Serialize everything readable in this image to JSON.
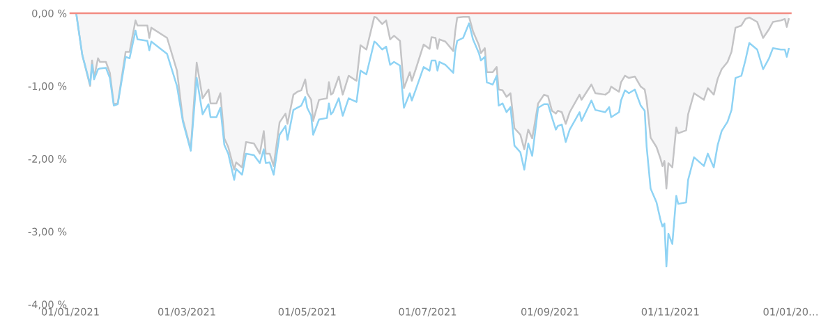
{
  "chart_data": {
    "type": "line",
    "x": [
      "2021-01-04",
      "2021-01-07",
      "2021-01-11",
      "2021-01-12",
      "2021-01-13",
      "2021-01-15",
      "2021-01-16",
      "2021-01-19",
      "2021-01-21",
      "2021-01-23",
      "2021-01-25",
      "2021-01-29",
      "2021-01-31",
      "2021-02-03",
      "2021-02-04",
      "2021-02-09",
      "2021-02-10",
      "2021-02-11",
      "2021-02-19",
      "2021-02-24",
      "2021-02-27",
      "2021-03-03",
      "2021-03-06",
      "2021-03-09",
      "2021-03-12",
      "2021-03-13",
      "2021-03-16",
      "2021-03-18",
      "2021-03-20",
      "2021-03-22",
      "2021-03-25",
      "2021-03-26",
      "2021-03-29",
      "2021-03-31",
      "2021-04-04",
      "2021-04-07",
      "2021-04-09",
      "2021-04-10",
      "2021-04-12",
      "2021-04-14",
      "2021-04-17",
      "2021-04-20",
      "2021-04-21",
      "2021-04-24",
      "2021-04-26",
      "2021-04-28",
      "2021-04-30",
      "2021-05-01",
      "2021-05-03",
      "2021-05-04",
      "2021-05-07",
      "2021-05-11",
      "2021-05-12",
      "2021-05-13",
      "2021-05-14",
      "2021-05-17",
      "2021-05-19",
      "2021-05-22",
      "2021-05-26",
      "2021-05-28",
      "2021-05-31",
      "2021-06-04",
      "2021-06-05",
      "2021-06-08",
      "2021-06-10",
      "2021-06-12",
      "2021-06-14",
      "2021-06-17",
      "2021-06-19",
      "2021-06-22",
      "2021-06-23",
      "2021-06-25",
      "2021-06-29",
      "2021-07-02",
      "2021-07-03",
      "2021-07-05",
      "2021-07-06",
      "2021-07-07",
      "2021-07-10",
      "2021-07-14",
      "2021-07-15",
      "2021-07-16",
      "2021-07-19",
      "2021-07-22",
      "2021-07-24",
      "2021-07-27",
      "2021-07-28",
      "2021-07-30",
      "2021-07-31",
      "2021-08-03",
      "2021-08-05",
      "2021-08-06",
      "2021-08-08",
      "2021-08-10",
      "2021-08-12",
      "2021-08-14",
      "2021-08-17",
      "2021-08-19",
      "2021-08-21",
      "2021-08-23",
      "2021-08-26",
      "2021-08-29",
      "2021-08-31",
      "2021-09-02",
      "2021-09-04",
      "2021-09-05",
      "2021-09-07",
      "2021-09-09",
      "2021-09-11",
      "2021-09-16",
      "2021-09-17",
      "2021-09-22",
      "2021-09-24",
      "2021-09-29",
      "2021-10-01",
      "2021-10-02",
      "2021-10-06",
      "2021-10-07",
      "2021-10-09",
      "2021-10-11",
      "2021-10-14",
      "2021-10-17",
      "2021-10-19",
      "2021-10-20",
      "2021-10-22",
      "2021-10-25",
      "2021-10-27",
      "2021-10-28",
      "2021-10-29",
      "2021-10-30",
      "2021-10-31",
      "2021-11-02",
      "2021-11-04",
      "2021-11-05",
      "2021-11-09",
      "2021-11-10",
      "2021-11-13",
      "2021-11-18",
      "2021-11-20",
      "2021-11-23",
      "2021-11-25",
      "2021-11-27",
      "2021-11-30",
      "2021-12-02",
      "2021-12-04",
      "2021-12-07",
      "2021-12-09",
      "2021-12-11",
      "2021-12-15",
      "2021-12-18",
      "2021-12-21",
      "2021-12-23",
      "2021-12-27",
      "2021-12-29",
      "2021-12-30",
      "2021-12-31"
    ],
    "series": [
      {
        "type": "area",
        "color": "#c4c4c6",
        "values": [
          -0.01,
          -0.57,
          -1.0,
          -0.65,
          -0.89,
          -0.62,
          -0.67,
          -0.67,
          -0.82,
          -1.25,
          -1.24,
          -0.53,
          -0.53,
          -0.1,
          -0.17,
          -0.17,
          -0.34,
          -0.2,
          -0.34,
          -0.79,
          -1.46,
          -1.87,
          -0.68,
          -1.17,
          -1.05,
          -1.24,
          -1.24,
          -1.1,
          -1.72,
          -1.84,
          -2.15,
          -2.05,
          -2.12,
          -1.77,
          -1.79,
          -1.93,
          -1.62,
          -1.93,
          -1.93,
          -2.1,
          -1.5,
          -1.38,
          -1.52,
          -1.12,
          -1.08,
          -1.06,
          -0.91,
          -1.1,
          -1.19,
          -1.48,
          -1.19,
          -1.17,
          -0.95,
          -1.12,
          -1.1,
          -0.87,
          -1.12,
          -0.86,
          -0.93,
          -0.44,
          -0.5,
          -0.05,
          -0.06,
          -0.15,
          -0.1,
          -0.36,
          -0.31,
          -0.38,
          -1.03,
          -0.81,
          -0.93,
          -0.77,
          -0.43,
          -0.49,
          -0.33,
          -0.34,
          -0.49,
          -0.36,
          -0.39,
          -0.52,
          -0.25,
          -0.06,
          -0.05,
          -0.05,
          -0.25,
          -0.44,
          -0.55,
          -0.48,
          -0.81,
          -0.81,
          -0.74,
          -1.05,
          -1.06,
          -1.15,
          -1.1,
          -1.58,
          -1.67,
          -1.87,
          -1.6,
          -1.72,
          -1.24,
          -1.12,
          -1.14,
          -1.34,
          -1.38,
          -1.34,
          -1.36,
          -1.52,
          -1.36,
          -1.12,
          -1.19,
          -0.98,
          -1.1,
          -1.12,
          -1.08,
          -1.01,
          -1.08,
          -0.95,
          -0.86,
          -0.89,
          -0.87,
          -1.01,
          -1.05,
          -1.2,
          -1.71,
          -1.84,
          -2.0,
          -2.1,
          -2.03,
          -2.41,
          -2.06,
          -2.12,
          -1.57,
          -1.65,
          -1.61,
          -1.39,
          -1.1,
          -1.19,
          -1.03,
          -1.12,
          -0.9,
          -0.77,
          -0.67,
          -0.53,
          -0.2,
          -0.17,
          -0.08,
          -0.06,
          -0.12,
          -0.34,
          -0.22,
          -0.12,
          -0.1,
          -0.08,
          -0.19,
          -0.08
        ]
      },
      {
        "color": "#8fd3f4",
        "values": [
          -0.01,
          -0.57,
          -0.98,
          -0.71,
          -0.91,
          -0.77,
          -0.76,
          -0.75,
          -0.89,
          -1.27,
          -1.25,
          -0.6,
          -0.62,
          -0.24,
          -0.36,
          -0.38,
          -0.51,
          -0.39,
          -0.56,
          -1.0,
          -1.49,
          -1.89,
          -0.89,
          -1.39,
          -1.25,
          -1.43,
          -1.43,
          -1.3,
          -1.81,
          -1.93,
          -2.29,
          -2.14,
          -2.22,
          -1.93,
          -1.95,
          -2.06,
          -1.87,
          -2.06,
          -2.05,
          -2.22,
          -1.67,
          -1.55,
          -1.74,
          -1.33,
          -1.3,
          -1.27,
          -1.15,
          -1.3,
          -1.41,
          -1.67,
          -1.46,
          -1.44,
          -1.24,
          -1.39,
          -1.36,
          -1.17,
          -1.41,
          -1.17,
          -1.22,
          -0.79,
          -0.84,
          -0.39,
          -0.41,
          -0.5,
          -0.46,
          -0.71,
          -0.67,
          -0.72,
          -1.3,
          -1.1,
          -1.2,
          -1.05,
          -0.74,
          -0.79,
          -0.65,
          -0.65,
          -0.79,
          -0.67,
          -0.71,
          -0.82,
          -0.52,
          -0.38,
          -0.34,
          -0.14,
          -0.36,
          -0.55,
          -0.65,
          -0.6,
          -0.95,
          -0.98,
          -0.86,
          -1.27,
          -1.24,
          -1.36,
          -1.29,
          -1.82,
          -1.91,
          -2.15,
          -1.79,
          -1.96,
          -1.3,
          -1.25,
          -1.25,
          -1.43,
          -1.6,
          -1.55,
          -1.53,
          -1.77,
          -1.6,
          -1.36,
          -1.48,
          -1.2,
          -1.33,
          -1.36,
          -1.29,
          -1.43,
          -1.36,
          -1.2,
          -1.06,
          -1.1,
          -1.05,
          -1.27,
          -1.34,
          -1.84,
          -2.41,
          -2.6,
          -2.84,
          -2.93,
          -2.89,
          -3.48,
          -3.03,
          -3.17,
          -2.51,
          -2.62,
          -2.6,
          -2.29,
          -1.98,
          -2.1,
          -1.93,
          -2.12,
          -1.81,
          -1.62,
          -1.49,
          -1.33,
          -0.89,
          -0.86,
          -0.65,
          -0.41,
          -0.5,
          -0.77,
          -0.62,
          -0.48,
          -0.5,
          -0.5,
          -0.6,
          -0.49
        ]
      }
    ],
    "ref_lines": [
      {
        "axis": "y",
        "value": 0,
        "color": "#f28b82"
      }
    ],
    "xlim": [
      "2021-01-01",
      "2022-01-01"
    ],
    "xticks": [
      {
        "value": "2021-01-01",
        "label": "01/01/2021"
      },
      {
        "value": "2021-03-01",
        "label": "01/03/2021"
      },
      {
        "value": "2021-05-01",
        "label": "01/05/2021"
      },
      {
        "value": "2021-07-01",
        "label": "01/07/2021"
      },
      {
        "value": "2021-09-01",
        "label": "01/09/2021"
      },
      {
        "value": "2021-11-01",
        "label": "01/11/2021"
      },
      {
        "value": "2022-01-01",
        "label": "01/01/20…"
      }
    ],
    "ylim": [
      -4.0,
      0.0
    ],
    "yticks": [
      {
        "value": 0,
        "label": "0,00 %"
      },
      {
        "value": -1,
        "label": "-1,00 %"
      },
      {
        "value": -2,
        "label": "-2,00 %"
      },
      {
        "value": -3,
        "label": "-3,00 %"
      },
      {
        "value": -4,
        "label": "-4,00 %"
      }
    ],
    "grid": false
  }
}
